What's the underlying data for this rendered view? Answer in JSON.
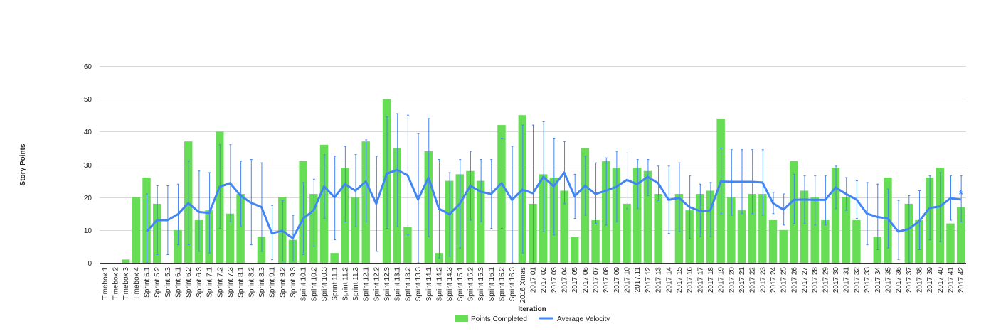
{
  "chart_data": {
    "type": "bar",
    "title": "",
    "xlabel": "Iteration",
    "ylabel": "Story Points",
    "ylim": [
      0,
      60
    ],
    "yticks": [
      0,
      10,
      20,
      30,
      40,
      50,
      60
    ],
    "grid": true,
    "legend_position": "bottom",
    "categories": [
      "Timebox 1",
      "Timebox 2",
      "Timebox 3",
      "Timebox 4",
      "Sprint 5.1",
      "Sprint 5.2",
      "Sprint 5.3",
      "Sprint 6.1",
      "Sprint 6.2",
      "Sprint 6.3",
      "Sprint 7.1",
      "Sprint 7.2",
      "Sprint 7.3",
      "Sprint 8.1",
      "Sprint 8.2",
      "Sprint 8.3",
      "Sprint 9.1",
      "Sprint 9.2",
      "Sprint 9.3",
      "Sprint 10.1",
      "Sprint 10.2",
      "Sprint 10.3",
      "Sprint 11.1",
      "Sprint 11.2",
      "Sprint 11.3",
      "Sprint 12.1",
      "Sprint 12.2",
      "Sprint 12.3",
      "Sprint 13.1",
      "Sprint 13.2",
      "Sprint 13.3",
      "Sprint 14.1",
      "Sprint 14.2",
      "Sprint 14.3",
      "Sprint 15.1",
      "Sprint 15.2",
      "Sprint 15.3",
      "Sprint 16.1",
      "Sprint 16.2",
      "Sprint 16.3",
      "2016 Xmas",
      "2017.01",
      "2017.02",
      "2017.03",
      "2017.04",
      "2017.05",
      "2017.06",
      "2017.07",
      "2017.08",
      "2017.09",
      "2017.10",
      "2017.11",
      "2017.12",
      "2017.13",
      "2017.14",
      "2017.15",
      "2017.16",
      "2017.17",
      "2017.18",
      "2017.19",
      "2017.20",
      "2017.21",
      "2017.22",
      "2017.23",
      "2017.24",
      "2017.25",
      "2017.26",
      "2017.27",
      "2017.28",
      "2017.29",
      "2017.30",
      "2017.31",
      "2017.32",
      "2017.33",
      "2017.34",
      "2017.35",
      "2017.36",
      "2017.37",
      "2017.38",
      "2017.39",
      "2017.40",
      "2017.41",
      "2017.42"
    ],
    "series": [
      {
        "name": "Points Completed",
        "type": "bar",
        "color": "#66dd55",
        "values": [
          0,
          0,
          1,
          20,
          26,
          18,
          0,
          10,
          37,
          13,
          16,
          40,
          15,
          21,
          0,
          8,
          0,
          20,
          7,
          31,
          21,
          36,
          3,
          29,
          20,
          37,
          0,
          50,
          35,
          11,
          0,
          34,
          3,
          25,
          27,
          28,
          25,
          0,
          42,
          0,
          45,
          18,
          27,
          26,
          22,
          8,
          35,
          13,
          31,
          29,
          18,
          29,
          28,
          21,
          0,
          21,
          16,
          21,
          22,
          44,
          20,
          16,
          21,
          21,
          13,
          10,
          31,
          22,
          20,
          13,
          29,
          20,
          13,
          0,
          8,
          26,
          0,
          18,
          13,
          26,
          29,
          12,
          17
        ]
      },
      {
        "name": "Average Velocity",
        "type": "line",
        "color": "#4285f4",
        "values": [
          null,
          null,
          null,
          null,
          9.5,
          13,
          13,
          14.8,
          18.2,
          15.5,
          15.2,
          23.2,
          24.3,
          20.5,
          18.3,
          17,
          9,
          9.8,
          7.5,
          13.5,
          16,
          23.3,
          20,
          24,
          22,
          24.8,
          18,
          27.2,
          28.3,
          26.7,
          19.3,
          26,
          16.5,
          14.8,
          18,
          23.5,
          21.7,
          21,
          24.3,
          19.2,
          22.3,
          21.2,
          26.2,
          23.3,
          27.5,
          20.3,
          23.5,
          21,
          22,
          23.2,
          25.3,
          24,
          26.2,
          24.3,
          19.2,
          19.8,
          17,
          15.8,
          16,
          24.8,
          24.7,
          24.7,
          24.7,
          24.5,
          18.2,
          16.2,
          19.2,
          19.3,
          19.2,
          19.2,
          23,
          21,
          19.3,
          15,
          14,
          13.5,
          9.5,
          10.3,
          12.7,
          16.7,
          17.2,
          19.7,
          19.3
        ]
      }
    ],
    "error_bars": {
      "color": "#4285f4",
      "ranges": [
        null,
        null,
        null,
        null,
        [
          0,
          21
        ],
        [
          2.5,
          23.5
        ],
        [
          2.5,
          23.5
        ],
        [
          5.5,
          24
        ],
        [
          5.5,
          31
        ],
        [
          3.5,
          28
        ],
        [
          3,
          27.5
        ],
        [
          10.5,
          36
        ],
        [
          12.5,
          36
        ],
        [
          11,
          31
        ],
        [
          5.5,
          31.5
        ],
        [
          3.5,
          30.5
        ],
        [
          1,
          17.5
        ],
        [
          0.5,
          19
        ],
        [
          0.5,
          14.5
        ],
        [
          2.5,
          24.5
        ],
        [
          5,
          25.5
        ],
        [
          13.5,
          33
        ],
        [
          7,
          32.5
        ],
        [
          12.5,
          35.5
        ],
        [
          11,
          33
        ],
        [
          12.5,
          37.5
        ],
        [
          3.5,
          32.5
        ],
        [
          10.5,
          44.5
        ],
        [
          11,
          45.5
        ],
        [
          8.5,
          45
        ],
        [
          0,
          39.5
        ],
        [
          8,
          44
        ],
        [
          1.5,
          31.5
        ],
        [
          2,
          27.5
        ],
        [
          4.5,
          31.5
        ],
        [
          13,
          34
        ],
        [
          12.5,
          31.5
        ],
        [
          10.5,
          31.5
        ],
        [
          10.5,
          38
        ],
        [
          0,
          35.5
        ],
        [
          3,
          42
        ],
        [
          0,
          42
        ],
        [
          9.5,
          43
        ],
        [
          8.5,
          38
        ],
        [
          18,
          37
        ],
        [
          13.5,
          27
        ],
        [
          14.5,
          32.5
        ],
        [
          12,
          30.5
        ],
        [
          11.5,
          32
        ],
        [
          12.5,
          34
        ],
        [
          16.5,
          33.5
        ],
        [
          16.5,
          31.5
        ],
        [
          20.5,
          31.5
        ],
        [
          19,
          29.5
        ],
        [
          9,
          29.5
        ],
        [
          9.5,
          30.5
        ],
        [
          7.5,
          26.5
        ],
        [
          8,
          24
        ],
        [
          8,
          24.5
        ],
        [
          15,
          35
        ],
        [
          14.5,
          34.5
        ],
        [
          15,
          34.5
        ],
        [
          15,
          34.5
        ],
        [
          14.5,
          34.5
        ],
        [
          15,
          21.5
        ],
        [
          11.5,
          21
        ],
        [
          12,
          27
        ],
        [
          12,
          26.5
        ],
        [
          11.5,
          26.5
        ],
        [
          11.5,
          26.5
        ],
        [
          16.5,
          29.5
        ],
        [
          16,
          26
        ],
        [
          13.5,
          25
        ],
        [
          5.5,
          24.5
        ],
        [
          4,
          24
        ],
        [
          4.5,
          22.5
        ],
        [
          1,
          19
        ],
        [
          0,
          20.5
        ],
        [
          4,
          22
        ],
        [
          7,
          26.5
        ],
        [
          6.5,
          27.5
        ],
        [
          13,
          26.5
        ],
        [
          12.5,
          26.5
        ]
      ]
    },
    "annotation": "*"
  }
}
